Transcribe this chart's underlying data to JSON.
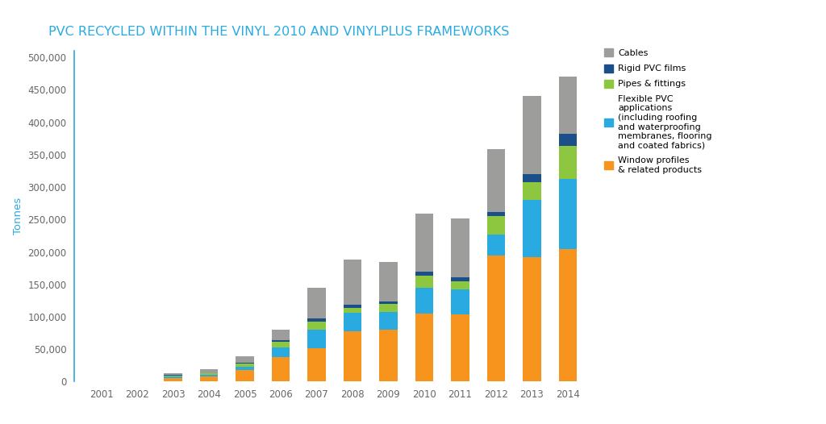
{
  "title": "PVC RECYCLED WITHIN THE VINYL 2010 AND VINYLPLUS FRAMEWORKS",
  "title_color": "#29ABE2",
  "ylabel": "Tonnes",
  "ylabel_color": "#29ABE2",
  "years": [
    2001,
    2002,
    2003,
    2004,
    2005,
    2006,
    2007,
    2008,
    2009,
    2010,
    2011,
    2012,
    2013,
    2014
  ],
  "colors": [
    "#F7941D",
    "#29ABE2",
    "#8DC63F",
    "#1B4F8A",
    "#9D9D9C"
  ],
  "data": {
    "Window profiles": [
      0,
      0,
      6000,
      8000,
      18000,
      38000,
      52000,
      78000,
      80000,
      105000,
      104000,
      195000,
      192000,
      204000
    ],
    "Flexible PVC": [
      0,
      0,
      2000,
      2500,
      5000,
      15000,
      28000,
      28000,
      28000,
      40000,
      38000,
      32000,
      88000,
      108000
    ],
    "Pipes": [
      0,
      0,
      1500,
      2000,
      5000,
      8000,
      13000,
      8000,
      12000,
      18000,
      13000,
      28000,
      28000,
      52000
    ],
    "Rigid films": [
      0,
      0,
      500,
      1000,
      1500,
      3000,
      4000,
      4000,
      4000,
      6000,
      6000,
      6000,
      12000,
      18000
    ],
    "Cables": [
      0,
      0,
      3000,
      5500,
      9500,
      16000,
      48000,
      70000,
      60000,
      90000,
      90000,
      98000,
      120000,
      88000
    ]
  },
  "ylim": [
    0,
    510000
  ],
  "yticks": [
    0,
    50000,
    100000,
    150000,
    200000,
    250000,
    300000,
    350000,
    400000,
    450000,
    500000
  ],
  "background_color": "#FFFFFF",
  "bar_width": 0.5,
  "figsize": [
    10.24,
    5.26
  ],
  "dpi": 100
}
